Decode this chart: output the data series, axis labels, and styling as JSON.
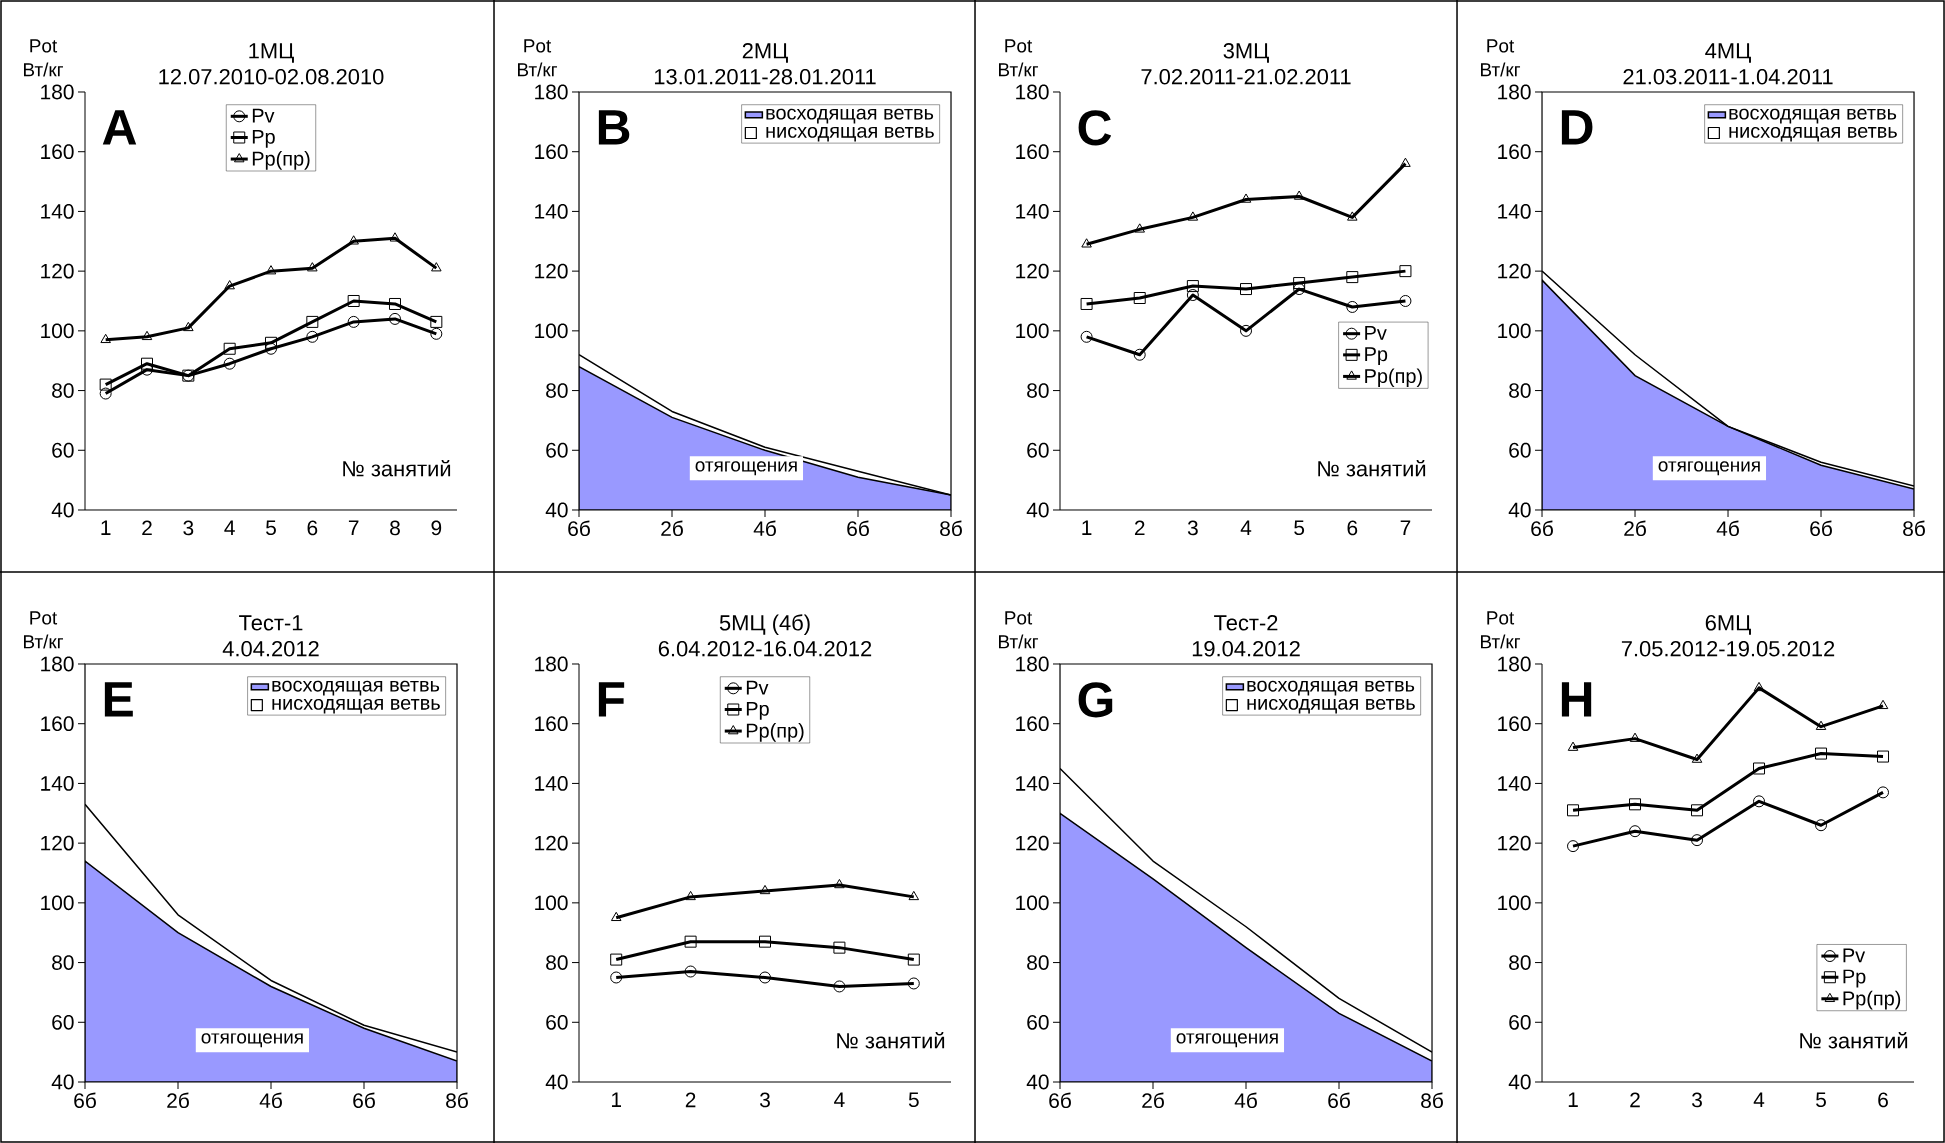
{
  "chart_data": [
    {
      "type": "line",
      "title": "1МЦ",
      "subtitle": "12.07.2010-02.08.2010",
      "ylabel": "Pot Вт/кг",
      "xlabel": "№ занятий",
      "annotations": [
        "A"
      ],
      "categories": [
        "1",
        "2",
        "3",
        "4",
        "5",
        "6",
        "7",
        "8",
        "9"
      ],
      "ylim": [
        40,
        180
      ],
      "yticks": [
        40,
        60,
        80,
        100,
        120,
        140,
        160,
        180
      ],
      "legend": "top",
      "series": [
        {
          "name": "Pv",
          "color": "#000000",
          "marker": "circle",
          "values": [
            79,
            87,
            85,
            89,
            94,
            98,
            103,
            104,
            99
          ]
        },
        {
          "name": "Pp",
          "color": "#000000",
          "marker": "square",
          "values": [
            82,
            89,
            85,
            94,
            96,
            103,
            110,
            109,
            103
          ]
        },
        {
          "name": "Pp(пр)",
          "color": "#000000",
          "marker": "triangle",
          "values": [
            97,
            98,
            101,
            115,
            120,
            121,
            130,
            131,
            121
          ]
        }
      ]
    },
    {
      "type": "area",
      "title": "2МЦ",
      "subtitle": "13.01.2011-28.01.2011",
      "ylabel": "Pot Вт/кг",
      "xlabel": "отягощения",
      "annotations": [
        "B"
      ],
      "categories": [
        "6б",
        "2б",
        "4б",
        "6б",
        "8б"
      ],
      "ylim": [
        40,
        180
      ],
      "yticks": [
        40,
        60,
        80,
        100,
        120,
        140,
        160,
        180
      ],
      "legend": "top right",
      "series": [
        {
          "name": "восходящая ветвь",
          "color": "#9999ff",
          "values": [
            88,
            71,
            60,
            51,
            45
          ]
        },
        {
          "name": "нисходящая ветвь",
          "type": "line",
          "color": "#000000",
          "values": [
            92,
            73,
            61,
            53,
            45
          ]
        }
      ]
    },
    {
      "type": "line",
      "title": "3МЦ",
      "subtitle": "7.02.2011-21.02.2011",
      "ylabel": "Pot Вт/кг",
      "xlabel": "№ занятий",
      "annotations": [
        "C"
      ],
      "categories": [
        "1",
        "2",
        "3",
        "4",
        "5",
        "6",
        "7"
      ],
      "ylim": [
        40,
        180
      ],
      "yticks": [
        40,
        60,
        80,
        100,
        120,
        140,
        160,
        180
      ],
      "legend": "right",
      "series": [
        {
          "name": "Pv",
          "color": "#000000",
          "marker": "circle",
          "values": [
            98,
            92,
            112,
            100,
            114,
            108,
            110
          ]
        },
        {
          "name": "Pp",
          "color": "#000000",
          "marker": "square",
          "values": [
            109,
            111,
            115,
            114,
            116,
            118,
            120
          ]
        },
        {
          "name": "Pp(пр)",
          "color": "#000000",
          "marker": "triangle",
          "values": [
            129,
            134,
            138,
            144,
            145,
            138,
            156
          ]
        }
      ]
    },
    {
      "type": "area",
      "title": "4МЦ",
      "subtitle": "21.03.2011-1.04.2011",
      "ylabel": "Pot Вт/кг",
      "xlabel": "отягощения",
      "annotations": [
        "D"
      ],
      "categories": [
        "6б",
        "2б",
        "4б",
        "6б",
        "8б"
      ],
      "ylim": [
        40,
        180
      ],
      "yticks": [
        40,
        60,
        80,
        100,
        120,
        140,
        160,
        180
      ],
      "legend": "top right",
      "series": [
        {
          "name": "восходящая ветвь",
          "color": "#9999ff",
          "values": [
            117,
            85,
            68,
            55,
            47
          ]
        },
        {
          "name": "нисходящая ветвь",
          "type": "line",
          "color": "#000000",
          "values": [
            120,
            92,
            68,
            56,
            48
          ]
        }
      ]
    },
    {
      "type": "area",
      "title": "Тест-1",
      "subtitle": "4.04.2012",
      "ylabel": "Pot Вт/кг",
      "xlabel": "отягощения",
      "annotations": [
        "E"
      ],
      "categories": [
        "6б",
        "2б",
        "4б",
        "6б",
        "8б"
      ],
      "ylim": [
        40,
        180
      ],
      "yticks": [
        40,
        60,
        80,
        100,
        120,
        140,
        160,
        180
      ],
      "legend": "top right",
      "series": [
        {
          "name": "восходящая ветвь",
          "color": "#9999ff",
          "values": [
            114,
            90,
            72,
            58,
            47
          ]
        },
        {
          "name": "нисходящая ветвь",
          "type": "line",
          "color": "#000000",
          "values": [
            133,
            96,
            74,
            59,
            50
          ]
        }
      ]
    },
    {
      "type": "line",
      "title": "5МЦ (4б)",
      "subtitle": "6.04.2012-16.04.2012",
      "xlabel": "№ занятий",
      "annotations": [
        "F"
      ],
      "categories": [
        "1",
        "2",
        "3",
        "4",
        "5"
      ],
      "ylim": [
        40,
        180
      ],
      "yticks": [
        40,
        60,
        80,
        100,
        120,
        140,
        160,
        180
      ],
      "legend": "top",
      "series": [
        {
          "name": "Pv",
          "color": "#000000",
          "marker": "circle",
          "values": [
            75,
            77,
            75,
            72,
            73
          ]
        },
        {
          "name": "Pp",
          "color": "#000000",
          "marker": "square",
          "values": [
            81,
            87,
            87,
            85,
            81
          ]
        },
        {
          "name": "Pp(пр)",
          "color": "#000000",
          "marker": "triangle",
          "values": [
            95,
            102,
            104,
            106,
            102
          ]
        }
      ]
    },
    {
      "type": "area",
      "title": "Тест-2",
      "subtitle": "19.04.2012",
      "ylabel": "Pot Вт/кг",
      "xlabel": "отягощения",
      "annotations": [
        "G"
      ],
      "categories": [
        "6б",
        "2б",
        "4б",
        "6б",
        "8б"
      ],
      "ylim": [
        40,
        180
      ],
      "yticks": [
        40,
        60,
        80,
        100,
        120,
        140,
        160,
        180
      ],
      "legend": "top right",
      "series": [
        {
          "name": "восходящая ветвь",
          "color": "#9999ff",
          "values": [
            130,
            108,
            85,
            63,
            47
          ]
        },
        {
          "name": "нисходящая ветвь",
          "type": "line",
          "color": "#000000",
          "values": [
            145,
            114,
            92,
            68,
            50
          ]
        }
      ]
    },
    {
      "type": "line",
      "title": "6МЦ",
      "subtitle": "7.05.2012-19.05.2012",
      "ylabel": "Pot Вт/кг",
      "xlabel": "№ занятий",
      "annotations": [
        "H"
      ],
      "categories": [
        "1",
        "2",
        "3",
        "4",
        "5",
        "6"
      ],
      "ylim": [
        40,
        180
      ],
      "yticks": [
        40,
        60,
        80,
        100,
        120,
        140,
        160,
        180
      ],
      "legend": "bottom right",
      "series": [
        {
          "name": "Pv",
          "color": "#000000",
          "marker": "circle",
          "values": [
            119,
            124,
            121,
            134,
            126,
            137
          ]
        },
        {
          "name": "Pp",
          "color": "#000000",
          "marker": "square",
          "values": [
            131,
            133,
            131,
            145,
            150,
            149
          ]
        },
        {
          "name": "Pp(пр)",
          "color": "#000000",
          "marker": "triangle",
          "values": [
            152,
            155,
            148,
            172,
            159,
            166
          ]
        }
      ]
    }
  ]
}
